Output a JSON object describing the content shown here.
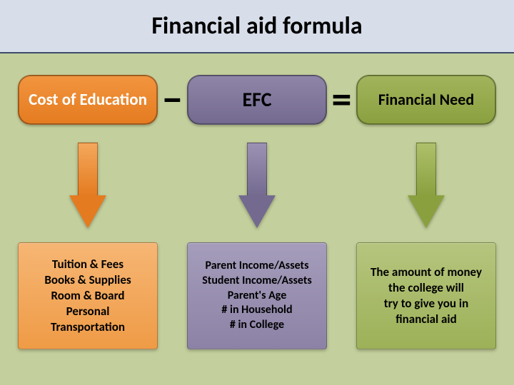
{
  "title": "Financial aid formula",
  "title_bar_background": "#d7dde9",
  "title_border_color": "#3b4a6b",
  "content_background": "#c3cf9c",
  "operators": {
    "minus": "−",
    "equals": "="
  },
  "columns": [
    {
      "id": "cost",
      "pill_label": "Cost of Education",
      "pill_bg_top": "#f2953f",
      "pill_bg_bottom": "#e47b20",
      "pill_text_color": "white",
      "pill_fontsize": 23,
      "arrow_top": "#f4a85c",
      "arrow_bottom": "#e47b20",
      "box_bg_top": "#f6b674",
      "box_bg_bottom": "#ef9b46",
      "box_fontsize": 17,
      "box_lines": [
        "Tuition & Fees",
        "Books & Supplies",
        "Room & Board",
        "Personal",
        "Transportation"
      ]
    },
    {
      "id": "efc",
      "pill_label": "EFC",
      "pill_bg_top": "#8e85a8",
      "pill_bg_bottom": "#746a90",
      "pill_text_color": "black",
      "pill_fontsize": 28,
      "arrow_top": "#9b92b3",
      "arrow_bottom": "#746a90",
      "box_bg_top": "#a59dbb",
      "box_bg_bottom": "#8c82a6",
      "box_fontsize": 16,
      "box_lines": [
        "Parent Income/Assets",
        "Student Income/Assets",
        "Parent's Age",
        "# in Household",
        "# in College"
      ]
    },
    {
      "id": "need",
      "pill_label": "Financial Need",
      "pill_bg_top": "#a2b45c",
      "pill_bg_bottom": "#8aa03f",
      "pill_text_color": "black",
      "pill_fontsize": 22,
      "arrow_top": "#aec06a",
      "arrow_bottom": "#8aa03f",
      "box_bg_top": "#b6c57e",
      "box_bg_bottom": "#9cb158",
      "box_fontsize": 17,
      "box_lines": [
        "The amount of money",
        "the college will",
        "try to give you in",
        "financial aid"
      ]
    }
  ]
}
